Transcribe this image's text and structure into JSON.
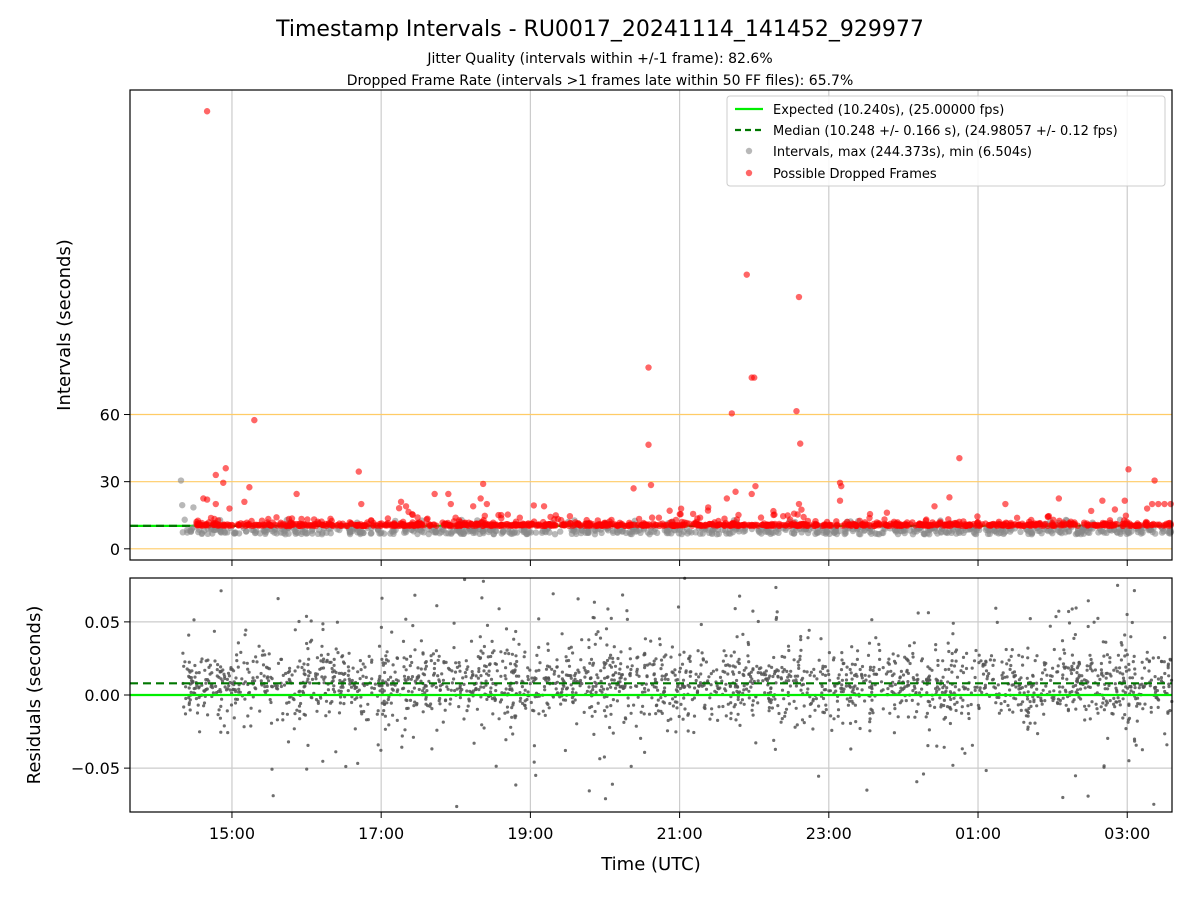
{
  "figure": {
    "title": "Timestamp Intervals - RU0017_20241114_141452_929977",
    "subtitle_line1": "Jitter Quality (intervals within +/-1 frame): 82.6%",
    "subtitle_line2": "Dropped Frame Rate (intervals >1 frames late within 50 FF files): 65.7%",
    "colors": {
      "expected": "#00ee00",
      "median": "#007700",
      "intervals": "#888888",
      "dropped": "#ff0000",
      "reference_lines": "#ffcc66",
      "grid": "#cccccc",
      "residuals": "#555555"
    }
  },
  "chart_data": [
    {
      "id": "intervals",
      "type": "scatter",
      "ylabel": "Intervals (seconds)",
      "xlabel": "",
      "x_unit": "hours of day (UTC), wrapping past midnight",
      "xlim": [
        "13:38",
        "03:36"
      ],
      "ylim": [
        -5,
        205
      ],
      "yticks": [
        "0",
        "30",
        "60"
      ],
      "ytick_values": [
        0,
        30,
        60
      ],
      "xticks": [
        "15:00",
        "17:00",
        "19:00",
        "21:00",
        "23:00",
        "01:00",
        "03:00"
      ],
      "xtick_values": [
        15,
        17,
        19,
        21,
        23,
        25,
        27
      ],
      "grid": "vertical",
      "reference_lines": [
        0,
        30,
        60
      ],
      "expected_interval": 10.24,
      "median_interval": 10.248,
      "legend_position": "upper right",
      "legend": [
        "Expected (10.240s), (25.00000 fps)",
        "Median (10.248 +/- 0.166 s), (24.98057 +/- 0.12 fps)",
        "Intervals, max (244.373s), min (6.504s)",
        "Possible Dropped Frames"
      ],
      "series": [
        {
          "name": "Intervals, max (244.373s), min (6.504s)",
          "x_range": [
            "14:20",
            "03:36"
          ],
          "y_typical": [
            6.5,
            13
          ],
          "outliers": [
            {
              "x": "14:19",
              "y": 30.5
            },
            {
              "x": "14:20",
              "y": 19.5
            },
            {
              "x": "14:22",
              "y": 13.0
            },
            {
              "x": "14:29",
              "y": 18.5
            }
          ]
        },
        {
          "name": "Possible Dropped Frames",
          "x_range": [
            "14:30",
            "03:36"
          ],
          "baseline_y": 10.2,
          "points": [
            {
              "x": "14:40",
              "y": 195.5
            },
            {
              "x": "14:37",
              "y": 22.5
            },
            {
              "x": "14:40",
              "y": 22.0
            },
            {
              "x": "14:47",
              "y": 33.0
            },
            {
              "x": "14:55",
              "y": 36.0
            },
            {
              "x": "14:53",
              "y": 29.5
            },
            {
              "x": "14:47",
              "y": 20.0
            },
            {
              "x": "14:58",
              "y": 18.0
            },
            {
              "x": "15:18",
              "y": 57.5
            },
            {
              "x": "15:10",
              "y": 21.0
            },
            {
              "x": "15:14",
              "y": 27.5
            },
            {
              "x": "15:52",
              "y": 24.5
            },
            {
              "x": "16:42",
              "y": 34.5
            },
            {
              "x": "16:44",
              "y": 20.0
            },
            {
              "x": "17:16",
              "y": 21.0
            },
            {
              "x": "17:20",
              "y": 19.0
            },
            {
              "x": "17:22",
              "y": 16.5
            },
            {
              "x": "17:43",
              "y": 24.5
            },
            {
              "x": "17:54",
              "y": 24.5
            },
            {
              "x": "17:56",
              "y": 20.0
            },
            {
              "x": "18:22",
              "y": 29.0
            },
            {
              "x": "18:20",
              "y": 22.5
            },
            {
              "x": "18:14",
              "y": 19.0
            },
            {
              "x": "18:25",
              "y": 20.0
            },
            {
              "x": "19:11",
              "y": 19.0
            },
            {
              "x": "20:23",
              "y": 27.0
            },
            {
              "x": "20:35",
              "y": 46.5
            },
            {
              "x": "20:37",
              "y": 28.5
            },
            {
              "x": "20:35",
              "y": 81.0
            },
            {
              "x": "20:52",
              "y": 17.0
            },
            {
              "x": "21:23",
              "y": 18.5
            },
            {
              "x": "21:38",
              "y": 22.5
            },
            {
              "x": "21:42",
              "y": 60.5
            },
            {
              "x": "21:45",
              "y": 25.5
            },
            {
              "x": "21:54",
              "y": 122.5
            },
            {
              "x": "21:58",
              "y": 76.5
            },
            {
              "x": "22:00",
              "y": 76.5
            },
            {
              "x": "22:01",
              "y": 28.0
            },
            {
              "x": "21:58",
              "y": 24.5
            },
            {
              "x": "22:34",
              "y": 61.5
            },
            {
              "x": "22:37",
              "y": 47.0
            },
            {
              "x": "22:36",
              "y": 20.0
            },
            {
              "x": "22:38",
              "y": 17.5
            },
            {
              "x": "22:36",
              "y": 112.5
            },
            {
              "x": "23:09",
              "y": 29.5
            },
            {
              "x": "23:09",
              "y": 21.5
            },
            {
              "x": "23:10",
              "y": 28.0
            },
            {
              "x": "00:25",
              "y": 19.0
            },
            {
              "x": "00:37",
              "y": 23.0
            },
            {
              "x": "00:45",
              "y": 40.5
            },
            {
              "x": "01:22",
              "y": 20.0
            },
            {
              "x": "02:05",
              "y": 22.5
            },
            {
              "x": "02:40",
              "y": 21.5
            },
            {
              "x": "02:58",
              "y": 21.5
            },
            {
              "x": "03:01",
              "y": 35.5
            },
            {
              "x": "03:16",
              "y": 18.0
            },
            {
              "x": "03:20",
              "y": 20.0
            },
            {
              "x": "03:22",
              "y": 30.5
            },
            {
              "x": "03:25",
              "y": 20.0
            },
            {
              "x": "03:30",
              "y": 20.0
            },
            {
              "x": "03:35",
              "y": 20.0
            }
          ]
        }
      ]
    },
    {
      "id": "residuals",
      "type": "scatter",
      "ylabel": "Residuals (seconds)",
      "xlabel": "Time (UTC)",
      "xlim": [
        "13:38",
        "03:36"
      ],
      "ylim": [
        -0.08,
        0.08
      ],
      "yticks": [
        "−0.05",
        "0.00",
        "0.05"
      ],
      "ytick_values": [
        -0.05,
        0.0,
        0.05
      ],
      "xticks": [
        "15:00",
        "17:00",
        "19:00",
        "21:00",
        "23:00",
        "01:00",
        "03:00"
      ],
      "xtick_values": [
        15,
        17,
        19,
        21,
        23,
        25,
        27
      ],
      "grid": "both",
      "expected_residual": 0.0,
      "median_residual": 0.008,
      "series": [
        {
          "name": "residuals",
          "x_range": [
            "14:20",
            "03:36"
          ],
          "y_center": 0.008,
          "y_typical_spread": 0.02,
          "y_range_shown": [
            -0.08,
            0.08
          ]
        }
      ]
    }
  ]
}
